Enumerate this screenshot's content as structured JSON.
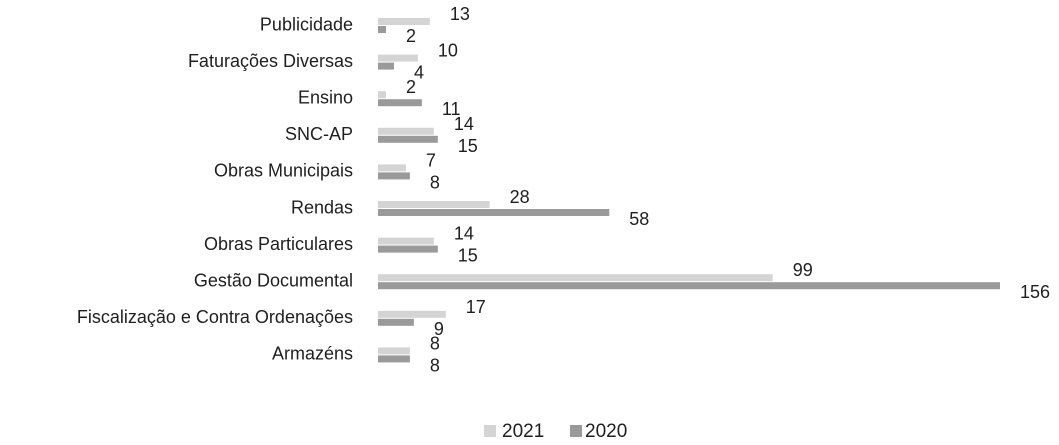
{
  "chart_data": {
    "type": "bar",
    "orientation": "horizontal",
    "title": "",
    "xlabel": "",
    "ylabel": "",
    "categories": [
      "Publicidade",
      "Faturações Diversas",
      "Ensino",
      "SNC-AP",
      "Obras Municipais",
      "Rendas",
      "Obras Particulares",
      "Gestão Documental",
      "Fiscalização e Contra Ordenações",
      "Armazéns"
    ],
    "series": [
      {
        "name": "2021",
        "color": "#d4d4d4",
        "values": [
          13,
          10,
          2,
          14,
          7,
          28,
          14,
          99,
          17,
          8
        ]
      },
      {
        "name": "2020",
        "color": "#9a9a9a",
        "values": [
          2,
          4,
          11,
          15,
          8,
          58,
          15,
          156,
          9,
          8
        ]
      }
    ],
    "xlim": [
      0,
      156
    ],
    "grid": false,
    "legend_position": "bottom-center"
  }
}
